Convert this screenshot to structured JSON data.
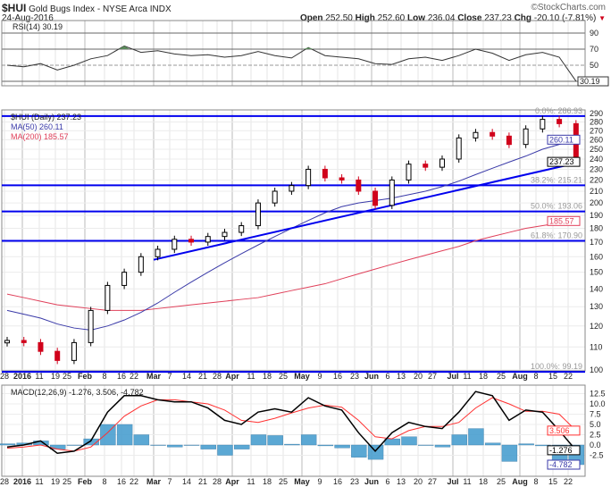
{
  "header": {
    "symbol": "$HUI",
    "name": "Gold Bugs Index - NYSE Arca INDX",
    "date": "24-Aug-2016",
    "watermark": "©StockCharts.com",
    "open_label": "Open",
    "open": "252.50",
    "high_label": "High",
    "high": "252.60",
    "low_label": "Low",
    "low": "236.04",
    "close_label": "Close",
    "close": "237.23",
    "chg_label": "Chg",
    "chg": "-20.10 (-7.81%)",
    "chg_icon": "down-triangle-icon"
  },
  "colors": {
    "up": "#000000",
    "down": "#d0021b",
    "ma50": "#3a3aa8",
    "ma200": "#e0405a",
    "fib": "#0000ee",
    "macd": "#000000",
    "signal": "#ff3030",
    "hist": "#4a9fd0"
  },
  "chart_data": [
    {
      "type": "line",
      "title": "RSI(14) 30.19",
      "legend": "RSI(14) 30.19",
      "ylim": [
        20,
        100
      ],
      "yticks": [
        "90",
        "70",
        "50"
      ],
      "last_label": "30.19",
      "values": [
        50,
        48,
        52,
        44,
        50,
        58,
        62,
        74,
        66,
        68,
        64,
        62,
        63,
        60,
        62,
        67,
        62,
        59,
        72,
        62,
        60,
        58,
        52,
        51,
        58,
        60,
        56,
        62,
        70,
        65,
        56,
        63,
        66,
        60,
        30.19
      ]
    },
    {
      "type": "candlestick",
      "title": "$HUI (Daily) 237.23",
      "scale": "log",
      "ylim": [
        97,
        295
      ],
      "yticks": [
        "290",
        "280",
        "270",
        "260",
        "250",
        "240",
        "230",
        "220",
        "210",
        "200",
        "190",
        "180",
        "170",
        "160",
        "150",
        "140",
        "130",
        "120",
        "110",
        "100"
      ],
      "legend": [
        "$HUI (Daily) 237.23",
        "MA(50) 260.11",
        "MA(200) 185.57"
      ],
      "x": [
        "Dec 28",
        "Jan 4",
        "Jan 11",
        "Jan 19",
        "Jan 25",
        "Feb 1",
        "Feb 8",
        "Feb 16",
        "Feb 22",
        "Feb 29",
        "Mar 7",
        "Mar 14",
        "Mar 21",
        "Mar 28",
        "Apr 4",
        "Apr 11",
        "Apr 18",
        "Apr 25",
        "May 2",
        "May 9",
        "May 16",
        "May 23",
        "May 31",
        "Jun 6",
        "Jun 13",
        "Jun 20",
        "Jun 27",
        "Jul 5",
        "Jul 11",
        "Jul 18",
        "Jul 25",
        "Aug 1",
        "Aug 8",
        "Aug 15",
        "Aug 24"
      ],
      "close": [
        113,
        112,
        108,
        104,
        112,
        128,
        142,
        150,
        160,
        165,
        172,
        170,
        174,
        177,
        182,
        200,
        210,
        215,
        230,
        222,
        220,
        210,
        198,
        220,
        235,
        232,
        240,
        262,
        268,
        264,
        255,
        272,
        283,
        278,
        237.23
      ],
      "ma50": [
        128,
        126,
        124,
        121,
        119,
        118,
        120,
        123,
        127,
        132,
        138,
        144,
        150,
        156,
        162,
        168,
        174,
        180,
        186,
        192,
        197,
        200,
        202,
        204,
        207,
        210,
        214,
        219,
        225,
        231,
        237,
        243,
        250,
        255,
        260.11
      ],
      "ma200": [
        137,
        135,
        133,
        131,
        130,
        129,
        128,
        128,
        128,
        129,
        130,
        131,
        132,
        133,
        134,
        135,
        137,
        139,
        141,
        143,
        146,
        149,
        152,
        155,
        158,
        161,
        164,
        167,
        171,
        174,
        177,
        180,
        182,
        184,
        185.57
      ],
      "fib_levels": [
        {
          "label": "0.0%: 286.93",
          "value": 286.93
        },
        {
          "label": "38.2%: 215.21",
          "value": 215.21
        },
        {
          "label": "50.0%: 193.06",
          "value": 193.06
        },
        {
          "label": "61.8%: 170.90",
          "value": 170.9
        },
        {
          "label": "100.0%: 99.19",
          "value": 99.19
        }
      ],
      "trendline": {
        "from": {
          "x": "Mar 1",
          "value": 158
        },
        "to": {
          "x": "Aug 24",
          "value": 236
        }
      },
      "last_labels": {
        "ma50": "260.11",
        "close": "237.23",
        "ma200": "185.57"
      }
    },
    {
      "type": "line",
      "title": "MACD(12,26,9) -1.276, 3.506, -4.782",
      "legend": [
        "MACD(12,26,9) -1.276",
        ", 3.506",
        ", -4.782"
      ],
      "ylim": [
        -6,
        14
      ],
      "yticks": [
        "12.5",
        "10.0",
        "7.5",
        "5.0",
        "2.5",
        "0.0",
        "-2.5"
      ],
      "macd": [
        -0.5,
        0,
        1,
        -2,
        -1.5,
        1,
        8,
        12,
        12,
        11,
        10.5,
        10.5,
        9,
        6,
        5,
        8,
        8.8,
        8,
        11.5,
        9.5,
        8.5,
        3,
        -1.5,
        3,
        5.5,
        4.5,
        4,
        8,
        13,
        12,
        6,
        8.5,
        8,
        3.5,
        -1.276
      ],
      "signal": [
        -0.8,
        -0.5,
        0,
        -1,
        -1.5,
        -0.5,
        3,
        7,
        9.5,
        11,
        11,
        10.5,
        10,
        8.5,
        6,
        5.5,
        6.5,
        7.8,
        9,
        9.7,
        9.2,
        6,
        2,
        1.5,
        3.5,
        4.5,
        4.5,
        5.5,
        9,
        11.5,
        10,
        8.2,
        8.2,
        7.5,
        3.506
      ],
      "last_labels": {
        "signal": "3.506",
        "macd": "-1.276",
        "hist": "-4.782"
      }
    }
  ],
  "xaxis": {
    "labels": [
      "28",
      "2016",
      "11",
      "19",
      "25",
      "Feb",
      "8",
      "16",
      "22",
      "Mar",
      "7",
      "14",
      "21",
      "28",
      "Apr",
      "11",
      "18",
      "25",
      "May",
      "9",
      "16",
      "23",
      "Jun",
      "6",
      "13",
      "20",
      "27",
      "Jul",
      "11",
      "18",
      "25",
      "Aug",
      "8",
      "15",
      "22"
    ],
    "bold": [
      "2016",
      "Feb",
      "Mar",
      "Apr",
      "May",
      "Jun",
      "Jul",
      "Aug"
    ]
  }
}
